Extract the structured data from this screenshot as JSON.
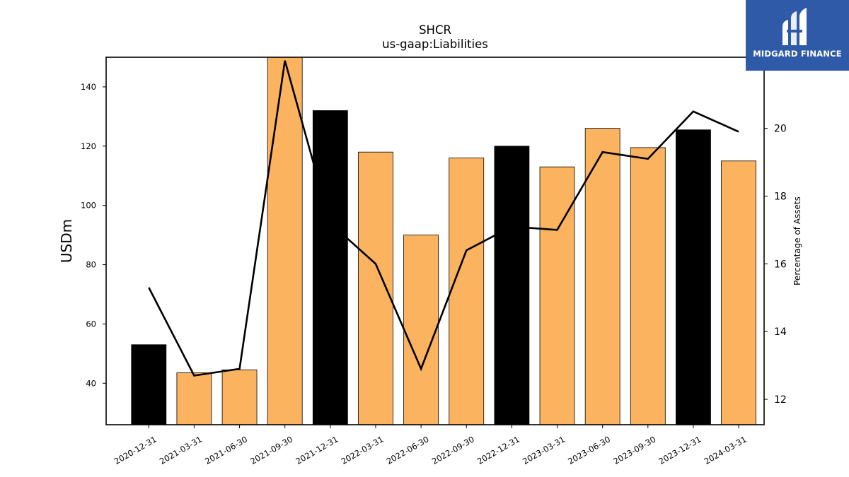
{
  "brand": {
    "name": "MIDGARD FINANCE",
    "logo_icon": "midgard-logo-icon",
    "bg_color": "#2f5aa8"
  },
  "chart_data": {
    "type": "bar",
    "title": "SHCR",
    "subtitle": "us-gaap:Liabilities",
    "ylabel": "USDm",
    "y2label": "Percentage of Assets",
    "categories": [
      "2020-12-31",
      "2021-03-31",
      "2021-06-30",
      "2021-09-30",
      "2021-12-31",
      "2022-03-31",
      "2022-06-30",
      "2022-09-30",
      "2022-12-31",
      "2023-03-31",
      "2023-06-30",
      "2023-09-30",
      "2023-12-31",
      "2024-03-31"
    ],
    "series": [
      {
        "values": [
          53,
          43.5,
          44.5,
          150,
          132,
          118,
          90,
          116,
          120,
          113,
          126,
          119.5,
          125.5,
          115
        ],
        "bar_colors": [
          "#000000",
          "#fbb360",
          "#fbb360",
          "#fbb360",
          "#000000",
          "#fbb360",
          "#fbb360",
          "#fbb360",
          "#000000",
          "#fbb360",
          "#fbb360",
          "#fbb360",
          "#000000",
          "#fbb360"
        ]
      },
      {
        "type": "line",
        "axis": "right",
        "color": "#000000",
        "values": [
          15.3,
          12.7,
          12.9,
          22.0,
          17.2,
          16.0,
          12.9,
          16.4,
          17.1,
          17.0,
          19.3,
          19.1,
          20.5,
          19.9
        ]
      }
    ],
    "ylim": [
      26,
      150
    ],
    "yticks": [
      40,
      60,
      80,
      100,
      120,
      140
    ],
    "y2lim": [
      11.25,
      22.1
    ],
    "y2ticks": [
      12,
      14,
      16,
      18,
      20
    ],
    "grid": false,
    "legend": "none"
  }
}
